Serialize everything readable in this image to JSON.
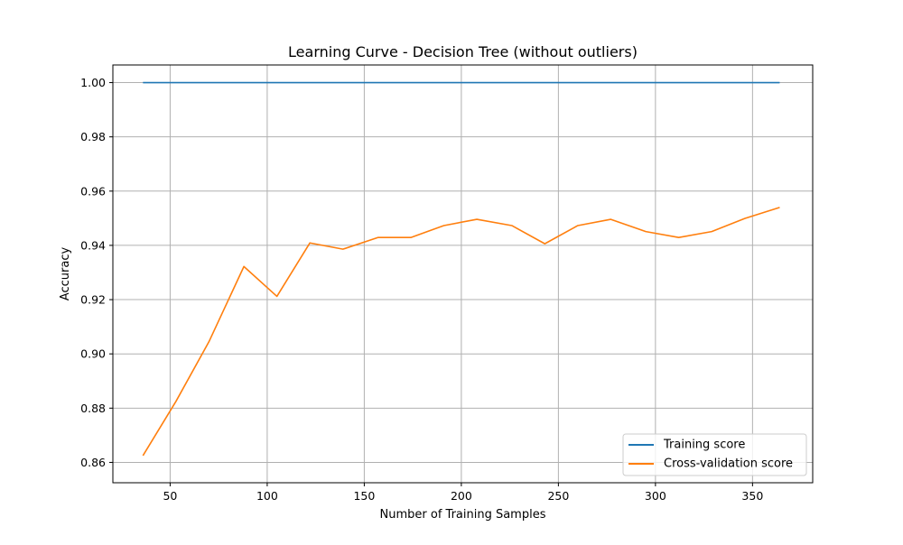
{
  "chart_data": {
    "type": "line",
    "title": "Learning Curve - Decision Tree (without outliers)",
    "xlabel": "Number of Training Samples",
    "ylabel": "Accuracy",
    "xlim": [
      20.5,
      381
    ],
    "ylim": [
      0.8525,
      1.0065
    ],
    "xticks": [
      50,
      100,
      150,
      200,
      250,
      300,
      350
    ],
    "yticks": [
      0.86,
      0.88,
      0.9,
      0.92,
      0.94,
      0.96,
      0.98,
      1.0
    ],
    "grid": true,
    "legend_position": "bottom-right",
    "x": [
      36,
      53,
      70,
      88,
      105,
      122,
      139,
      157,
      174,
      191,
      208,
      226,
      243,
      260,
      277,
      295,
      312,
      329,
      346,
      364
    ],
    "series": [
      {
        "name": "Training score",
        "color": "#1f77b4",
        "values": [
          1.0,
          1.0,
          1.0,
          1.0,
          1.0,
          1.0,
          1.0,
          1.0,
          1.0,
          1.0,
          1.0,
          1.0,
          1.0,
          1.0,
          1.0,
          1.0,
          1.0,
          1.0,
          1.0,
          1.0
        ]
      },
      {
        "name": "Cross-validation score",
        "color": "#ff7f0e",
        "values": [
          0.8625,
          0.8825,
          0.9045,
          0.9322,
          0.9212,
          0.9409,
          0.9386,
          0.9429,
          0.9429,
          0.9473,
          0.9496,
          0.9473,
          0.9406,
          0.9473,
          0.9496,
          0.9451,
          0.9429,
          0.9451,
          0.9499,
          0.954
        ]
      }
    ]
  }
}
